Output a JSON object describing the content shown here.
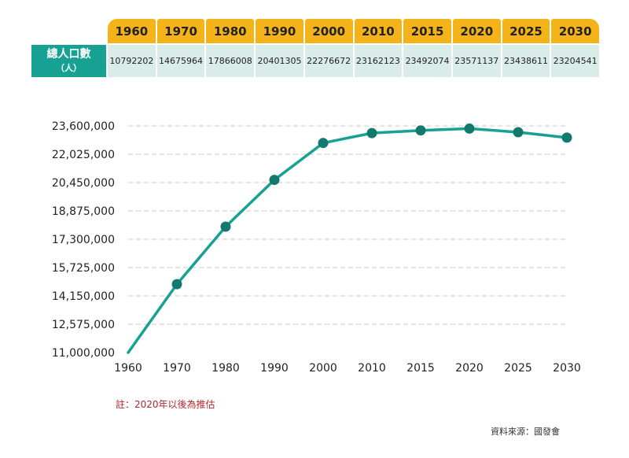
{
  "table": {
    "row_label": "總人口數",
    "row_label_unit": "（人）",
    "years": [
      "1960",
      "1970",
      "1980",
      "1990",
      "2000",
      "2010",
      "2015",
      "2020",
      "2025",
      "2030"
    ],
    "populations": [
      "10792202",
      "14675964",
      "17866008",
      "20401305",
      "22276672",
      "23162123",
      "23492074",
      "23571137",
      "23438611",
      "23204541"
    ]
  },
  "chart_data": {
    "type": "line",
    "x": [
      "1960",
      "1970",
      "1980",
      "1990",
      "2000",
      "2010",
      "2015",
      "2020",
      "2025",
      "2030"
    ],
    "series": [
      {
        "values": [
          11000000,
          14800000,
          18000000,
          20600000,
          22650000,
          23200000,
          23350000,
          23450000,
          23250000,
          22950000
        ]
      }
    ],
    "ylim": [
      11000000,
      23600000
    ],
    "yticks": [
      "11,000,000",
      "12,575,000",
      "14,150,000",
      "15,725,000",
      "17,300,000",
      "18,875,000",
      "20,450,000",
      "22,025,000",
      "23,600,000"
    ],
    "xlabel": "",
    "ylabel": "",
    "title": "",
    "grid": true,
    "line_color": "#17a193",
    "marker_color": "#117a6d"
  },
  "note": "註：2020年以後為推估",
  "source": "資料來源：國發會"
}
